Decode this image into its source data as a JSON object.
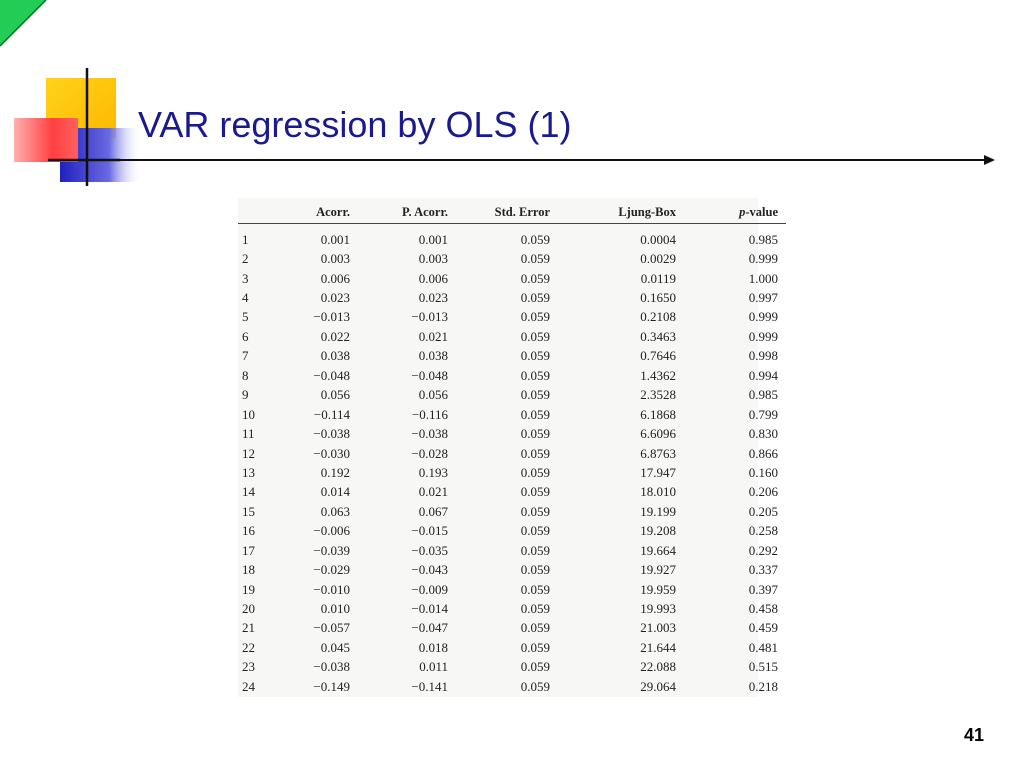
{
  "slide": {
    "title": "VAR regression by OLS (1)",
    "page_number": "41",
    "colors": {
      "title": "#1a1a8c",
      "corner_triangle": "#22cc55",
      "deco_yellow": "#ffcc00",
      "deco_red": "#ff4d4d",
      "deco_blue": "#3333cc"
    }
  },
  "table": {
    "headers": [
      "",
      "Acorr.",
      "P. Acorr.",
      "Std. Error",
      "Ljung-Box",
      "p-value"
    ],
    "rows": [
      [
        "1",
        "0.001",
        "0.001",
        "0.059",
        "0.0004",
        "0.985"
      ],
      [
        "2",
        "0.003",
        "0.003",
        "0.059",
        "0.0029",
        "0.999"
      ],
      [
        "3",
        "0.006",
        "0.006",
        "0.059",
        "0.0119",
        "1.000"
      ],
      [
        "4",
        "0.023",
        "0.023",
        "0.059",
        "0.1650",
        "0.997"
      ],
      [
        "5",
        "−0.013",
        "−0.013",
        "0.059",
        "0.2108",
        "0.999"
      ],
      [
        "6",
        "0.022",
        "0.021",
        "0.059",
        "0.3463",
        "0.999"
      ],
      [
        "7",
        "0.038",
        "0.038",
        "0.059",
        "0.7646",
        "0.998"
      ],
      [
        "8",
        "−0.048",
        "−0.048",
        "0.059",
        "1.4362",
        "0.994"
      ],
      [
        "9",
        "0.056",
        "0.056",
        "0.059",
        "2.3528",
        "0.985"
      ],
      [
        "10",
        "−0.114",
        "−0.116",
        "0.059",
        "6.1868",
        "0.799"
      ],
      [
        "11",
        "−0.038",
        "−0.038",
        "0.059",
        "6.6096",
        "0.830"
      ],
      [
        "12",
        "−0.030",
        "−0.028",
        "0.059",
        "6.8763",
        "0.866"
      ],
      [
        "13",
        "0.192",
        "0.193",
        "0.059",
        "17.947",
        "0.160"
      ],
      [
        "14",
        "0.014",
        "0.021",
        "0.059",
        "18.010",
        "0.206"
      ],
      [
        "15",
        "0.063",
        "0.067",
        "0.059",
        "19.199",
        "0.205"
      ],
      [
        "16",
        "−0.006",
        "−0.015",
        "0.059",
        "19.208",
        "0.258"
      ],
      [
        "17",
        "−0.039",
        "−0.035",
        "0.059",
        "19.664",
        "0.292"
      ],
      [
        "18",
        "−0.029",
        "−0.043",
        "0.059",
        "19.927",
        "0.337"
      ],
      [
        "19",
        "−0.010",
        "−0.009",
        "0.059",
        "19.959",
        "0.397"
      ],
      [
        "20",
        "0.010",
        "−0.014",
        "0.059",
        "19.993",
        "0.458"
      ],
      [
        "21",
        "−0.057",
        "−0.047",
        "0.059",
        "21.003",
        "0.459"
      ],
      [
        "22",
        "0.045",
        "0.018",
        "0.059",
        "21.644",
        "0.481"
      ],
      [
        "23",
        "−0.038",
        "0.011",
        "0.059",
        "22.088",
        "0.515"
      ],
      [
        "24",
        "−0.149",
        "−0.141",
        "0.059",
        "29.064",
        "0.218"
      ]
    ]
  }
}
